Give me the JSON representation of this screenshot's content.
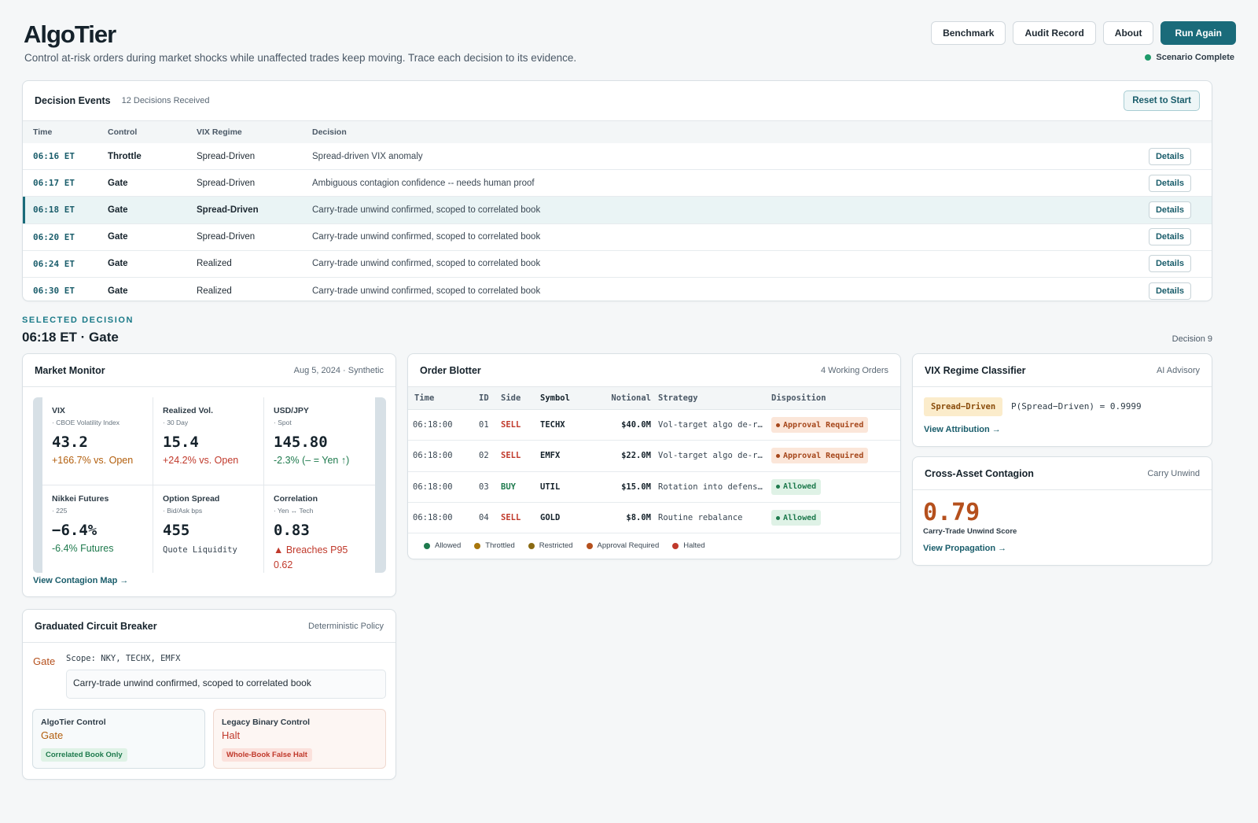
{
  "app": {
    "name": "AlgoTier",
    "tagline": "Control at-risk orders during market shocks while unaffected trades keep moving. Trace each decision to its evidence.",
    "status": "Scenario Complete",
    "actions": {
      "benchmark": "Benchmark",
      "audit": "Audit Record",
      "about": "About",
      "run_again": "Run Again"
    }
  },
  "events": {
    "title": "Decision Events",
    "count": "12 Decisions Received",
    "reset": "Reset to Start",
    "columns": {
      "time": "Time",
      "control": "Control",
      "vix": "VIX Regime",
      "decision": "Decision"
    },
    "details_label": "Details",
    "rows": [
      {
        "time": "06:16 ET",
        "control": "Throttle",
        "vix": "Spread-Driven",
        "decision": "Spread-driven VIX anomaly"
      },
      {
        "time": "06:17 ET",
        "control": "Gate",
        "vix": "Spread-Driven",
        "decision": "Ambiguous contagion confidence -- needs human proof"
      },
      {
        "time": "06:18 ET",
        "control": "Gate",
        "vix": "Spread-Driven",
        "decision": "Carry-trade unwind confirmed, scoped to correlated book"
      },
      {
        "time": "06:20 ET",
        "control": "Gate",
        "vix": "Spread-Driven",
        "decision": "Carry-trade unwind confirmed, scoped to correlated book"
      },
      {
        "time": "06:24 ET",
        "control": "Gate",
        "vix": "Realized",
        "decision": "Carry-trade unwind confirmed, scoped to correlated book"
      },
      {
        "time": "06:30 ET",
        "control": "Gate",
        "vix": "Realized",
        "decision": "Carry-trade unwind confirmed, scoped to correlated book"
      }
    ]
  },
  "selected": {
    "label": "SELECTED DECISION",
    "title": "06:18 ET · Gate",
    "number": "Decision 9"
  },
  "market": {
    "title": "Market Monitor",
    "meta": "Aug 5, 2024 · Synthetic",
    "link": "View Contagion Map →",
    "cells": [
      {
        "name": "VIX",
        "sub": "· CBOE Volatility Index",
        "value": "43.2",
        "delta": "+166.7% vs. Open"
      },
      {
        "name": "Realized Vol.",
        "sub": "· 30 Day",
        "value": "15.4",
        "delta": "+24.2% vs. Open"
      },
      {
        "name": "USD/JPY",
        "sub": "· Spot",
        "value": "145.80",
        "delta": "-2.3% (– = Yen ↑)"
      },
      {
        "name": "Nikkei Futures",
        "sub": "· 225",
        "value": "−6.4%",
        "delta": "-6.4% Futures"
      },
      {
        "name": "Option Spread",
        "sub": "· Bid/Ask bps",
        "value": "455",
        "delta": "Quote Liquidity"
      },
      {
        "name": "Correlation",
        "sub": "· Yen ↔ Tech",
        "value": "0.83",
        "delta": "▲ Breaches P95 0.62"
      }
    ]
  },
  "breaker": {
    "title": "Graduated Circuit Breaker",
    "meta": "Deterministic Policy",
    "control": "Gate",
    "scope": "Scope: NKY, TECHX, EMFX",
    "reason": "Carry-trade unwind confirmed, scoped to correlated book",
    "algotier": {
      "title": "AlgoTier Control",
      "value": "Gate",
      "badge": "Correlated Book Only"
    },
    "legacy": {
      "title": "Legacy Binary Control",
      "value": "Halt",
      "badge": "Whole-Book False Halt"
    }
  },
  "blotter": {
    "title": "Order Blotter",
    "meta": "4 Working Orders",
    "columns": {
      "time": "Time",
      "id": "ID",
      "side": "Side",
      "symbol": "Symbol",
      "notional": "Notional",
      "strategy": "Strategy",
      "disposition": "Disposition"
    },
    "rows": [
      {
        "time": "06:18:00",
        "id": "01",
        "side": "SELL",
        "symbol": "TECHX",
        "notional": "$40.0M",
        "strategy": "Vol-target algo de-risking",
        "disposition": "Approval Required"
      },
      {
        "time": "06:18:00",
        "id": "02",
        "side": "SELL",
        "symbol": "EMFX",
        "notional": "$22.0M",
        "strategy": "Vol-target algo de-risking",
        "disposition": "Approval Required"
      },
      {
        "time": "06:18:00",
        "id": "03",
        "side": "BUY",
        "symbol": "UTIL",
        "notional": "$15.0M",
        "strategy": "Rotation into defensives",
        "disposition": "Allowed"
      },
      {
        "time": "06:18:00",
        "id": "04",
        "side": "SELL",
        "symbol": "GOLD",
        "notional": "$8.0M",
        "strategy": "Routine rebalance",
        "disposition": "Allowed"
      }
    ],
    "legend": [
      {
        "label": "Allowed",
        "color": "#1e7a4d"
      },
      {
        "label": "Throttled",
        "color": "#a8760c"
      },
      {
        "label": "Restricted",
        "color": "#8a6a12"
      },
      {
        "label": "Approval Required",
        "color": "#b5501d"
      },
      {
        "label": "Halted",
        "color": "#c0392b"
      }
    ]
  },
  "vix": {
    "title": "VIX Regime Classifier",
    "meta": "AI Advisory",
    "regime": "Spread−Driven",
    "probability": "P(Spread−Driven) = 0.9999",
    "link": "View Attribution →"
  },
  "contagion": {
    "title": "Cross-Asset Contagion",
    "meta": "Carry Unwind",
    "score": "0.79",
    "score_label": "Carry-Trade Unwind Score",
    "link": "View Propagation →"
  }
}
